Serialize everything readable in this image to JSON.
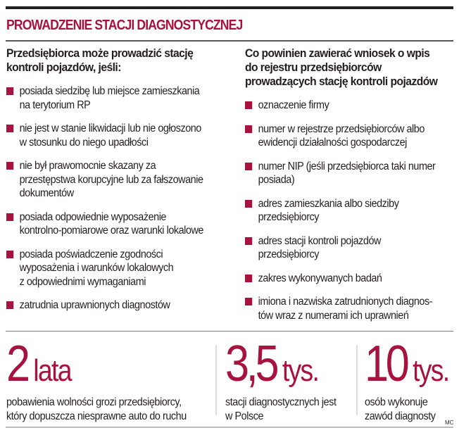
{
  "title": "PROWADZENIE STACJI DIAGNOSTYCZNEJ",
  "accent_color": "#a8123e",
  "left": {
    "heading": "Przedsiębiorca może prowadzić stację\nkontroli pojazdów, jeśli:",
    "items": [
      "posiada siedzibę lub miejsce zamieszkania\nna terytorium RP",
      "nie jest w stanie likwidacji lub nie ogłoszono\nw stosunku do niego upadłości",
      "nie był prawomocnie skazany za\nprzestępstwa korupcyjne  lub za fałszowanie\ndokumentów",
      "posiada odpowiednie wyposażenie\nkontrolno-pomiarowe oraz warunki lokalowe",
      "posiada poświadczenie zgodności\nwyposażenia i warunków lokalowych\nz odpowiednimi wymaganiami",
      "zatrudnia uprawnionych diagnostów"
    ]
  },
  "right": {
    "heading": "Co powinien zawierać wniosek o wpis\ndo rejestru przedsiębiorców\nprowadzących stację kontroli pojazdów",
    "items": [
      "oznaczenie firmy",
      "numer w rejestrze przedsiębiorców albo\newidencji działalności gospodarczej",
      "numer NIP (jeśli przedsiębiorca taki numer\nposiada)",
      "adres zamieszkania albo siedziby\nprzedsiębiorcy",
      "adres stacji kontroli pojazdów\nprzedsiębiorcy",
      "zakres wykonywanych badań",
      "imiona i nazwiska zatrudnionych diagnos-\ntów wraz z numerami ich uprawnień"
    ]
  },
  "stats": [
    {
      "value": "2",
      "unit": "lata",
      "description": "pobawienia wolności grozi przedsiębiorcy,\nktóry dopuszcza niesprawne auto do ruchu"
    },
    {
      "value": "3,5",
      "unit": "tys.",
      "description": "stacji diagnostycznych jest\nw Polsce"
    },
    {
      "value": "10",
      "unit": "tys.",
      "description": "osób wykonuje\nzawód diagnosty"
    }
  ],
  "credit": "MC"
}
